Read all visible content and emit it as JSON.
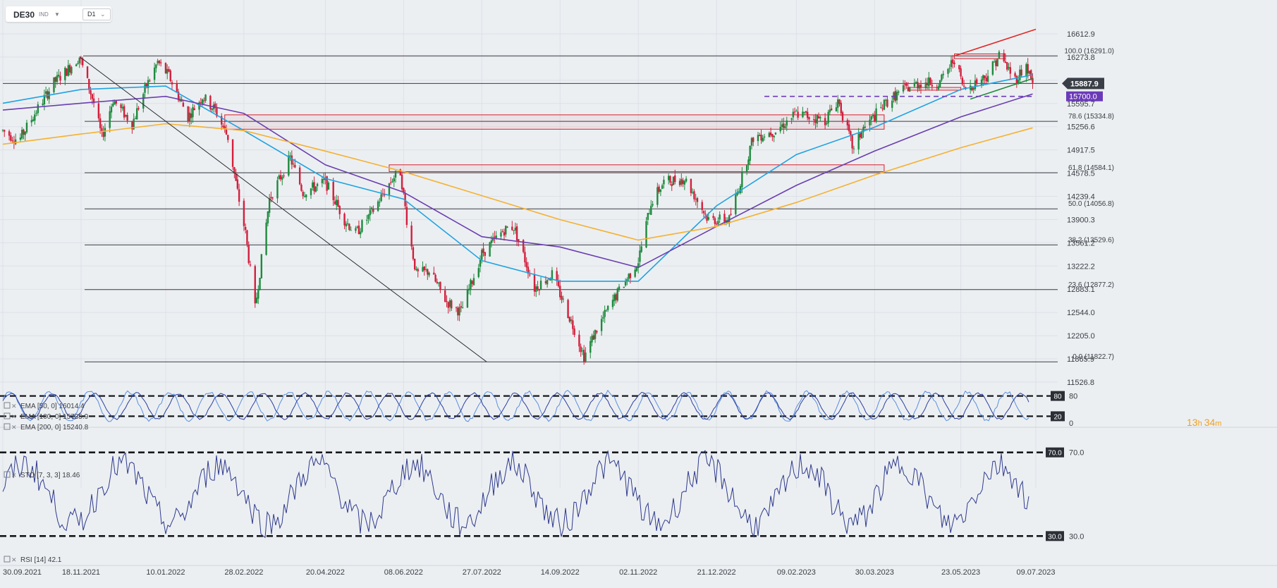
{
  "toolbar": {
    "symbol": "DE30",
    "exchange": "IND",
    "timeframe": "D1"
  },
  "timer": {
    "hours": "13",
    "h_unit": "h",
    "minutes": "34",
    "m_unit": "m"
  },
  "legend": {
    "ema50": "EMA [50, 0] 16014.4",
    "ema100": "EMA [100, 0] 15735.9",
    "ema200": "EMA [200, 0] 15240.8",
    "sto": "STO [7, 3, 3] 18.46",
    "rsi": "RSI [14] 42.1"
  },
  "price_tags": {
    "current": "15887.9",
    "support": "15700.0"
  },
  "colors": {
    "bull": "#1e8a3e",
    "bear": "#d21f3c",
    "ema50": "#1fa3e2",
    "ema100": "#6a3fb0",
    "ema200": "#f5b130",
    "fib": "#3a3d42",
    "red_zone": "#d3212f",
    "accent_tag": "#6b3ab8"
  },
  "chart_data": [
    {
      "type": "line",
      "title": "DE30",
      "subtitle": "D1",
      "ylim": [
        11526.8,
        16612.9
      ],
      "yticks": [
        "16612.9",
        "16273.8",
        "15934.6",
        "15595.7",
        "15256.6",
        "14917.5",
        "14578.5",
        "14239.4",
        "13900.3",
        "13561.2",
        "13222.2",
        "12883.1",
        "12544.0",
        "12205.0",
        "11865.9",
        "11526.8"
      ],
      "xticks": [
        "30.09.2021",
        "18.11.2021",
        "10.01.2022",
        "28.02.2022",
        "20.04.2022",
        "08.06.2022",
        "27.07.2022",
        "14.09.2022",
        "02.11.2022",
        "21.12.2022",
        "09.02.2023",
        "30.03.2023",
        "23.05.2023",
        "09.07.2023"
      ],
      "fib_levels": [
        {
          "label": "100.0 (16291.0)",
          "value": 16291.0
        },
        {
          "label": "78.6 (15334.8)",
          "value": 15334.8
        },
        {
          "label": "61.8 (14584.1)",
          "value": 14584.1
        },
        {
          "label": "50.0 (14056.8)",
          "value": 14056.8
        },
        {
          "label": "38.2 (13529.6)",
          "value": 13529.6
        },
        {
          "label": "23.6 (12877.2)",
          "value": 12877.2
        },
        {
          "label": "0.0 (11822.7)",
          "value": 11822.7
        }
      ],
      "price_path": [
        [
          "30.09.2021",
          15200
        ],
        [
          "10.10.2021",
          15050
        ],
        [
          "20.10.2021",
          15450
        ],
        [
          "01.11.2021",
          15900
        ],
        [
          "10.11.2021",
          16100
        ],
        [
          "17.11.2021",
          16280
        ],
        [
          "26.11.2021",
          15600
        ],
        [
          "01.12.2021",
          15100
        ],
        [
          "08.12.2021",
          15650
        ],
        [
          "20.12.2021",
          15300
        ],
        [
          "28.12.2021",
          15800
        ],
        [
          "05.01.2022",
          16200
        ],
        [
          "12.01.2022",
          16000
        ],
        [
          "24.01.2022",
          15400
        ],
        [
          "02.02.2022",
          15700
        ],
        [
          "10.02.2022",
          15500
        ],
        [
          "18.02.2022",
          15100
        ],
        [
          "24.02.2022",
          14300
        ],
        [
          "01.03.2022",
          13700
        ],
        [
          "07.03.2022",
          12600
        ],
        [
          "16.03.2022",
          14200
        ],
        [
          "29.03.2022",
          14800
        ],
        [
          "06.04.2022",
          14300
        ],
        [
          "20.04.2022",
          14450
        ],
        [
          "02.05.2022",
          13900
        ],
        [
          "09.05.2022",
          13700
        ],
        [
          "19.05.2022",
          14000
        ],
        [
          "01.06.2022",
          14500
        ],
        [
          "06.06.2022",
          14600
        ],
        [
          "10.06.2022",
          13900
        ],
        [
          "16.06.2022",
          13100
        ],
        [
          "24.06.2022",
          13150
        ],
        [
          "05.07.2022",
          12700
        ],
        [
          "14.07.2022",
          12550
        ],
        [
          "27.07.2022",
          13400
        ],
        [
          "10.08.2022",
          13750
        ],
        [
          "16.08.2022",
          13800
        ],
        [
          "29.08.2022",
          12900
        ],
        [
          "09.09.2022",
          13100
        ],
        [
          "23.09.2022",
          12300
        ],
        [
          "29.09.2022",
          11900
        ],
        [
          "07.10.2022",
          12300
        ],
        [
          "18.10.2022",
          12750
        ],
        [
          "02.11.2022",
          13300
        ],
        [
          "10.11.2022",
          14150
        ],
        [
          "18.11.2022",
          14450
        ],
        [
          "01.12.2022",
          14500
        ],
        [
          "16.12.2022",
          13900
        ],
        [
          "29.12.2022",
          13900
        ],
        [
          "05.01.2023",
          14450
        ],
        [
          "13.01.2023",
          15100
        ],
        [
          "27.01.2023",
          15200
        ],
        [
          "09.02.2023",
          15450
        ],
        [
          "27.02.2023",
          15350
        ],
        [
          "07.03.2023",
          15650
        ],
        [
          "17.03.2023",
          14900
        ],
        [
          "22.03.2023",
          15200
        ],
        [
          "06.04.2023",
          15600
        ],
        [
          "17.04.2023",
          15800
        ],
        [
          "28.04.2023",
          15900
        ],
        [
          "10.05.2023",
          15900
        ],
        [
          "19.05.2023",
          16250
        ],
        [
          "25.05.2023",
          15800
        ],
        [
          "08.06.2023",
          16000
        ],
        [
          "16.06.2023",
          16300
        ],
        [
          "26.06.2023",
          15950
        ],
        [
          "03.07.2023",
          16150
        ],
        [
          "07.07.2023",
          15888
        ]
      ],
      "series": [
        {
          "name": "EMA [50, 0] 16014.4",
          "color": "#1fa3e2",
          "values": [
            [
              "30.09.2021",
              15600
            ],
            [
              "18.11.2021",
              15800
            ],
            [
              "10.01.2022",
              15850
            ],
            [
              "28.02.2022",
              15200
            ],
            [
              "20.04.2022",
              14500
            ],
            [
              "08.06.2022",
              14200
            ],
            [
              "27.07.2022",
              13300
            ],
            [
              "14.09.2022",
              13000
            ],
            [
              "02.11.2022",
              13000
            ],
            [
              "21.12.2022",
              14100
            ],
            [
              "09.02.2023",
              14850
            ],
            [
              "30.03.2023",
              15250
            ],
            [
              "23.05.2023",
              15800
            ],
            [
              "07.07.2023",
              16014.4
            ]
          ]
        },
        {
          "name": "EMA [100, 0] 15735.9",
          "color": "#6a3fb0",
          "values": [
            [
              "30.09.2021",
              15500
            ],
            [
              "18.11.2021",
              15600
            ],
            [
              "10.01.2022",
              15700
            ],
            [
              "28.02.2022",
              15450
            ],
            [
              "20.04.2022",
              14700
            ],
            [
              "08.06.2022",
              14300
            ],
            [
              "27.07.2022",
              13650
            ],
            [
              "14.09.2022",
              13500
            ],
            [
              "02.11.2022",
              13200
            ],
            [
              "21.12.2022",
              13800
            ],
            [
              "09.02.2023",
              14400
            ],
            [
              "30.03.2023",
              14900
            ],
            [
              "23.05.2023",
              15400
            ],
            [
              "07.07.2023",
              15735.9
            ]
          ]
        },
        {
          "name": "EMA [200, 0] 15240.8",
          "color": "#f5b130",
          "values": [
            [
              "30.09.2021",
              15000
            ],
            [
              "18.11.2021",
              15150
            ],
            [
              "10.01.2022",
              15300
            ],
            [
              "28.02.2022",
              15200
            ],
            [
              "20.04.2022",
              14900
            ],
            [
              "08.06.2022",
              14600
            ],
            [
              "27.07.2022",
              14250
            ],
            [
              "14.09.2022",
              13900
            ],
            [
              "02.11.2022",
              13600
            ],
            [
              "21.12.2022",
              13800
            ],
            [
              "09.02.2023",
              14150
            ],
            [
              "30.03.2023",
              14550
            ],
            [
              "23.05.2023",
              14950
            ],
            [
              "07.07.2023",
              15240.8
            ]
          ]
        }
      ]
    },
    {
      "type": "line",
      "title": "STO [7, 3, 3] 18.46",
      "ylim": [
        0,
        100
      ],
      "yticks": [
        "80",
        "0"
      ],
      "levels": [
        {
          "label": "80",
          "value": 80
        },
        {
          "label": "20",
          "value": 20
        }
      ],
      "series": [
        {
          "name": "STO [7, 3, 3] 18.46",
          "color": "#3a5fc8",
          "last": 18.46
        }
      ]
    },
    {
      "type": "line",
      "title": "RSI [14] 42.1",
      "ylim": [
        20,
        80
      ],
      "yticks": [
        "70.0",
        "30.0"
      ],
      "levels": [
        {
          "label": "70.0",
          "value": 70.0
        },
        {
          "label": "30.0",
          "value": 30.0
        }
      ],
      "series": [
        {
          "name": "RSI [14] 42.1",
          "color": "#2e3a8c",
          "last": 42.1
        }
      ]
    }
  ]
}
